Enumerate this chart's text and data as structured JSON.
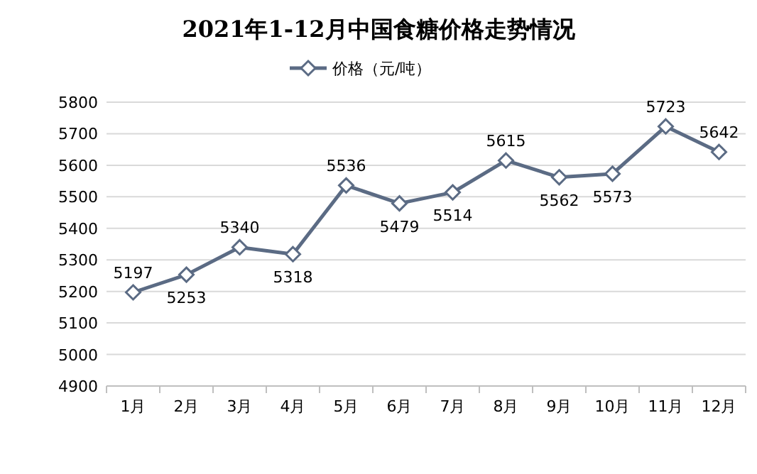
{
  "chart_data": {
    "type": "line",
    "title": "2021年1-12月中国食糖价格走势情况",
    "categories": [
      "1月",
      "2月",
      "3月",
      "4月",
      "5月",
      "6月",
      "7月",
      "8月",
      "9月",
      "10月",
      "11月",
      "12月"
    ],
    "series": [
      {
        "name": "价格（元/吨）",
        "color": "#5b6b84",
        "values": [
          5197,
          5253,
          5340,
          5318,
          5536,
          5479,
          5514,
          5615,
          5562,
          5573,
          5723,
          5642
        ]
      }
    ],
    "ylim": [
      4900,
      5800
    ],
    "yticks": [
      4900,
      5000,
      5100,
      5200,
      5300,
      5400,
      5500,
      5600,
      5700,
      5800
    ],
    "grid": "y",
    "legend": "top",
    "marker": "diamond",
    "line_style": "solid",
    "data_labels": true
  }
}
